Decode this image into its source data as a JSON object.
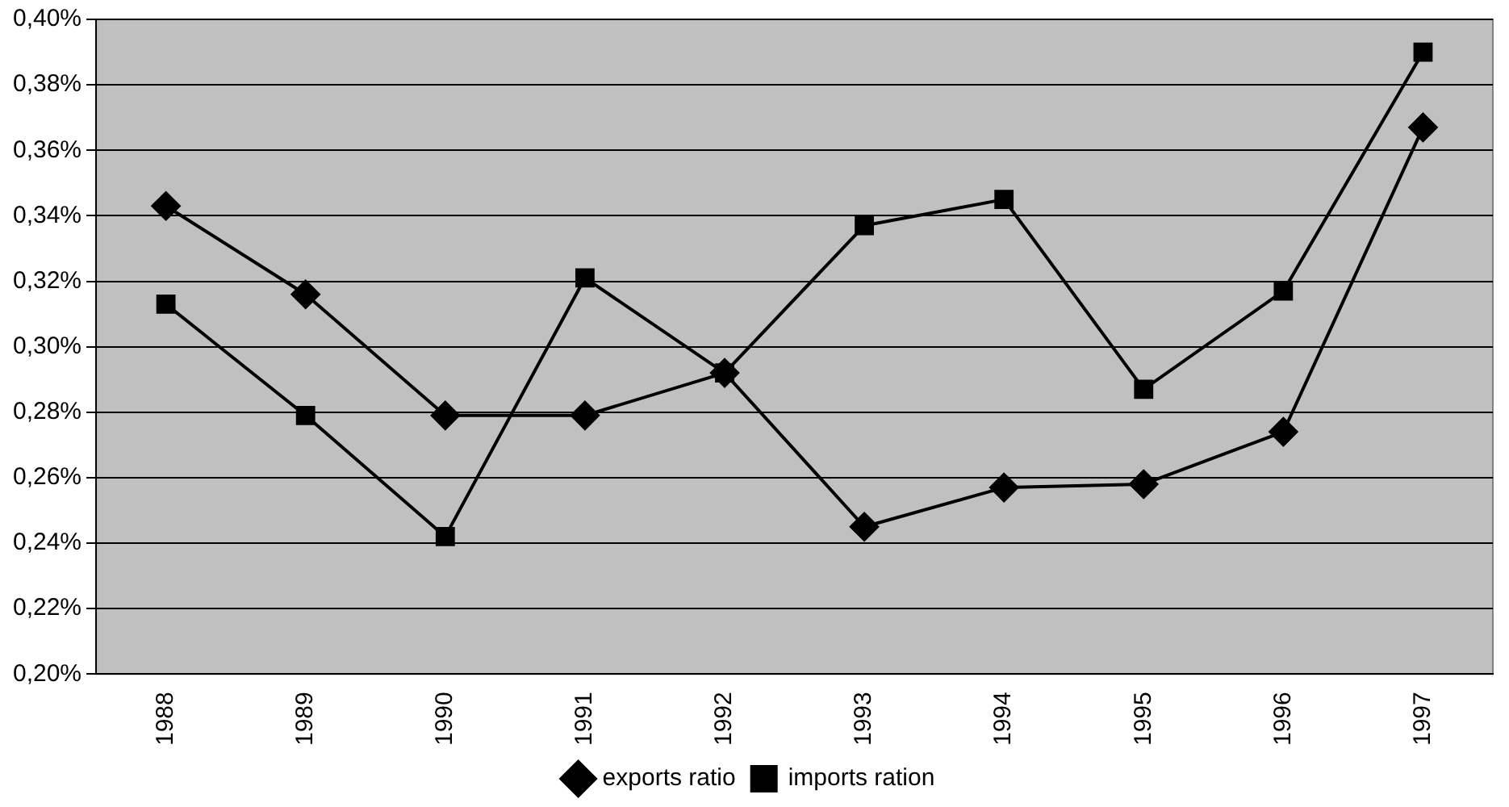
{
  "chart_data": {
    "type": "line",
    "categories": [
      "1988",
      "1989",
      "1990",
      "1991",
      "1992",
      "1993",
      "1994",
      "1995",
      "1996",
      "1997"
    ],
    "series": [
      {
        "name": "exports ratio",
        "color": "#000000",
        "marker": "diamond",
        "values": [
          0.343,
          0.316,
          0.279,
          0.279,
          0.292,
          0.245,
          0.257,
          0.258,
          0.274,
          0.367
        ]
      },
      {
        "name": "imports ration",
        "color": "#000000",
        "marker": "square",
        "values": [
          0.313,
          0.279,
          0.242,
          0.321,
          0.292,
          0.337,
          0.345,
          0.287,
          0.317,
          0.39
        ]
      }
    ],
    "ylim": [
      0.2,
      0.4
    ],
    "yticks": [
      {
        "value": 0.2,
        "label": "0,20%"
      },
      {
        "value": 0.22,
        "label": "0,22%"
      },
      {
        "value": 0.24,
        "label": "0,24%"
      },
      {
        "value": 0.26,
        "label": "0,26%"
      },
      {
        "value": 0.28,
        "label": "0,28%"
      },
      {
        "value": 0.3,
        "label": "0,30%"
      },
      {
        "value": 0.32,
        "label": "0,32%"
      },
      {
        "value": 0.34,
        "label": "0,34%"
      },
      {
        "value": 0.36,
        "label": "0,36%"
      },
      {
        "value": 0.38,
        "label": "0,38%"
      },
      {
        "value": 0.4,
        "label": "0,40%"
      }
    ],
    "grid": "y",
    "legend": "bottom",
    "line_style": "solid"
  }
}
